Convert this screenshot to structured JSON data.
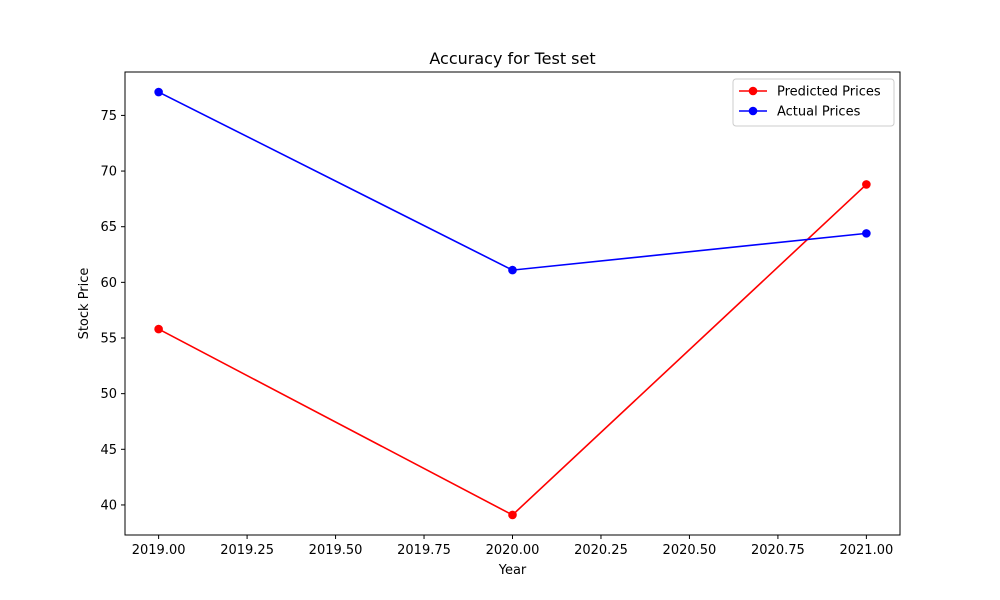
{
  "chart_data": {
    "type": "line",
    "title": "Accuracy for Test set",
    "xlabel": "Year",
    "ylabel": "Stock Price",
    "xlim": [
      2018.905,
      2021.095
    ],
    "ylim": [
      37.3,
      78.9
    ],
    "xticks": [
      2019.0,
      2019.25,
      2019.5,
      2019.75,
      2020.0,
      2020.25,
      2020.5,
      2020.75,
      2021.0
    ],
    "xtick_labels": [
      "2019.00",
      "2019.25",
      "2019.50",
      "2019.75",
      "2020.00",
      "2020.25",
      "2020.50",
      "2020.75",
      "2021.00"
    ],
    "yticks": [
      40,
      45,
      50,
      55,
      60,
      65,
      70,
      75
    ],
    "ytick_labels": [
      "40",
      "45",
      "50",
      "55",
      "60",
      "65",
      "70",
      "75"
    ],
    "grid": false,
    "legend_position": "top-right",
    "series": [
      {
        "name": "Predicted Prices",
        "color": "#ff0000",
        "marker": "circle",
        "x": [
          2019.0,
          2020.0,
          2021.0
        ],
        "y": [
          55.8,
          39.1,
          68.8
        ]
      },
      {
        "name": "Actual Prices",
        "color": "#0000ff",
        "marker": "circle",
        "x": [
          2019.0,
          2020.0,
          2021.0
        ],
        "y": [
          77.1,
          61.1,
          64.4
        ]
      }
    ]
  }
}
